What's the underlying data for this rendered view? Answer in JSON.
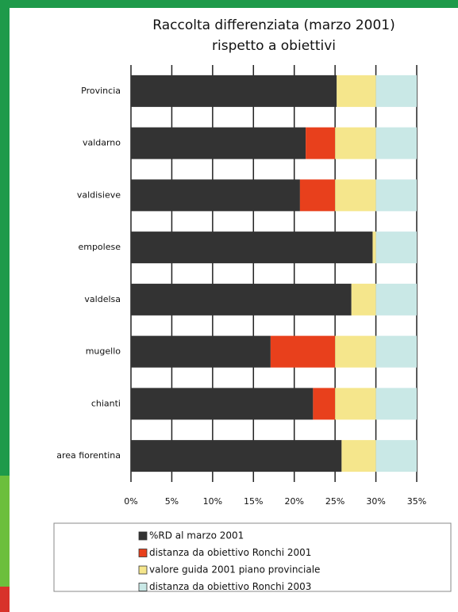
{
  "chart_data": {
    "type": "stacked-bar-horizontal",
    "title": [
      "Raccolta differenziata (marzo 2001)",
      "rispetto a obiettivi"
    ],
    "categories": [
      "Provincia",
      "valdarno",
      "valdisieve",
      "empolese",
      "valdelsa",
      "mugello",
      "chianti",
      "area fiorentina"
    ],
    "series": [
      {
        "name": "%RD al marzo 2001",
        "color": "#333333",
        "values": [
          25.2,
          21.4,
          20.7,
          29.6,
          27,
          17.1,
          22.3,
          25.8
        ]
      },
      {
        "name": "distanza da obiettivo Ronchi 2001",
        "color": "#e8401c",
        "values": [
          0,
          3.6,
          4.3,
          0,
          0,
          7.9,
          2.7,
          0
        ]
      },
      {
        "name": "valore guida 2001 piano provinciale",
        "color": "#f5e68c",
        "values": [
          4.8,
          5,
          5,
          0.4,
          3,
          5,
          5,
          4.2
        ]
      },
      {
        "name": "distanza da obiettivo Ronchi 2003",
        "color": "#c9e8e6",
        "values": [
          5,
          5,
          5,
          5,
          5,
          5,
          5,
          5
        ]
      }
    ],
    "xlim": [
      0,
      35
    ],
    "xticks": [
      {
        "value": 0,
        "label": "0%"
      },
      {
        "value": 5,
        "label": "5%"
      },
      {
        "value": 10,
        "label": "10%"
      },
      {
        "value": 15,
        "label": "15%"
      },
      {
        "value": 20,
        "label": "20%"
      },
      {
        "value": 25,
        "label": "25%"
      },
      {
        "value": 30,
        "label": "30%"
      },
      {
        "value": 35,
        "label": "35%"
      }
    ],
    "grid": true
  }
}
